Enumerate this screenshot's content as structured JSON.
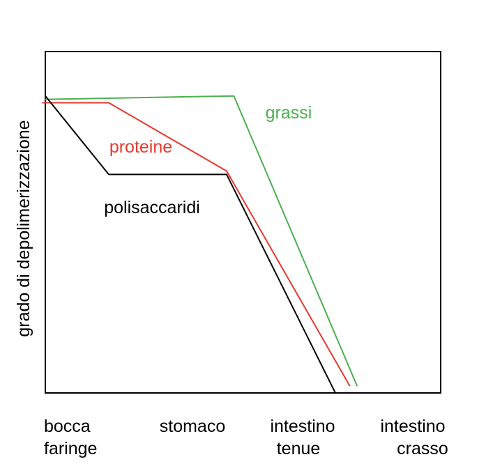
{
  "chart_data": {
    "type": "line",
    "title": "",
    "ylabel": "grado di depolimerizzazione",
    "xlabel": "",
    "categories": [
      [
        "bocca",
        "faringe"
      ],
      [
        "stomaco"
      ],
      [
        "intestino",
        "tenue"
      ],
      [
        "intestino",
        "crasso"
      ]
    ],
    "grid": false,
    "legend": "none",
    "series": [
      {
        "name": "grassi",
        "color": "#4caf50",
        "points": [
          [
            0,
            0.86
          ],
          [
            1.05,
            0.87
          ],
          [
            1.9,
            0.02
          ]
        ]
      },
      {
        "name": "proteine",
        "color": "#e8392c",
        "points": [
          [
            -0.05,
            0.85
          ],
          [
            0.35,
            0.85
          ],
          [
            1.0,
            0.65
          ],
          [
            1.85,
            0.02
          ]
        ]
      },
      {
        "name": "polisaccaridi",
        "color": "#000000",
        "points": [
          [
            0,
            0.87
          ],
          [
            0.35,
            0.64
          ],
          [
            1.0,
            0.64
          ],
          [
            1.75,
            0.0
          ]
        ]
      }
    ]
  }
}
